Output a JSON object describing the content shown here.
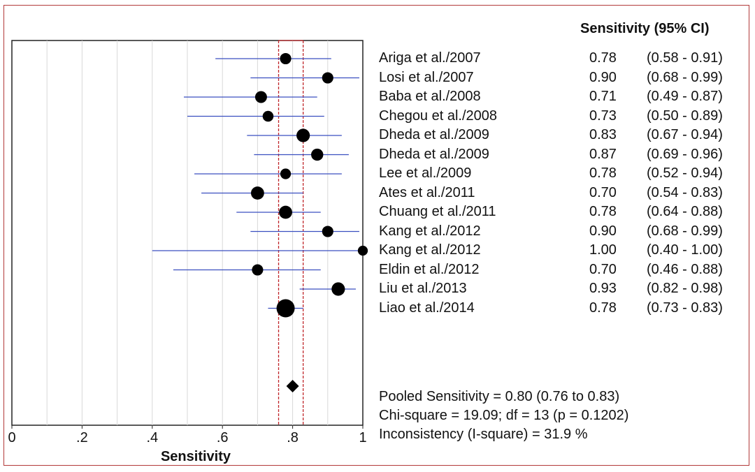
{
  "chart_data": {
    "type": "forest",
    "header": "Sensitivity (95% CI)",
    "xlabel": "Sensitivity",
    "xlim": [
      0,
      1
    ],
    "xticks": [
      "0",
      ".2",
      ".4",
      ".6",
      ".8",
      "1"
    ],
    "pooled_ci": [
      0.76,
      0.83
    ],
    "pooled_estimate": 0.8,
    "studies": [
      {
        "label": "Ariga et al./2007",
        "est": 0.78,
        "lo": 0.58,
        "hi": 0.91,
        "est_text": "0.78",
        "ci_text": "(0.58 - 0.91)"
      },
      {
        "label": "Losi et al./2007",
        "est": 0.9,
        "lo": 0.68,
        "hi": 0.99,
        "est_text": "0.90",
        "ci_text": "(0.68 - 0.99)"
      },
      {
        "label": "Baba et al./2008",
        "est": 0.71,
        "lo": 0.49,
        "hi": 0.87,
        "est_text": "0.71",
        "ci_text": "(0.49 - 0.87)"
      },
      {
        "label": "Chegou et al./2008",
        "est": 0.73,
        "lo": 0.5,
        "hi": 0.89,
        "est_text": "0.73",
        "ci_text": "(0.50 - 0.89)"
      },
      {
        "label": "Dheda et al./2009",
        "est": 0.83,
        "lo": 0.67,
        "hi": 0.94,
        "est_text": "0.83",
        "ci_text": "(0.67 - 0.94)"
      },
      {
        "label": "Dheda et al./2009",
        "est": 0.87,
        "lo": 0.69,
        "hi": 0.96,
        "est_text": "0.87",
        "ci_text": "(0.69 - 0.96)"
      },
      {
        "label": "Lee et al./2009",
        "est": 0.78,
        "lo": 0.52,
        "hi": 0.94,
        "est_text": "0.78",
        "ci_text": "(0.52 - 0.94)"
      },
      {
        "label": "Ates et al./2011",
        "est": 0.7,
        "lo": 0.54,
        "hi": 0.83,
        "est_text": "0.70",
        "ci_text": "(0.54 - 0.83)"
      },
      {
        "label": "Chuang et al./2011",
        "est": 0.78,
        "lo": 0.64,
        "hi": 0.88,
        "est_text": "0.78",
        "ci_text": "(0.64 - 0.88)"
      },
      {
        "label": "Kang et al./2012",
        "est": 0.9,
        "lo": 0.68,
        "hi": 0.99,
        "est_text": "0.90",
        "ci_text": "(0.68 - 0.99)"
      },
      {
        "label": "Kang et al./2012",
        "est": 1.0,
        "lo": 0.4,
        "hi": 1.0,
        "est_text": "1.00",
        "ci_text": "(0.40 - 1.00)"
      },
      {
        "label": "Eldin et al./2012",
        "est": 0.7,
        "lo": 0.46,
        "hi": 0.88,
        "est_text": "0.70",
        "ci_text": "(0.46 - 0.88)"
      },
      {
        "label": "Liu et al./2013",
        "est": 0.93,
        "lo": 0.82,
        "hi": 0.98,
        "est_text": "0.93",
        "ci_text": "(0.82 - 0.98)"
      },
      {
        "label": "Liao et al./2014",
        "est": 0.78,
        "lo": 0.73,
        "hi": 0.83,
        "est_text": "0.78",
        "ci_text": "(0.73 - 0.83)"
      }
    ],
    "marker_weights": [
      0.45,
      0.45,
      0.5,
      0.42,
      0.62,
      0.52,
      0.4,
      0.6,
      0.6,
      0.45,
      0.35,
      0.45,
      0.62,
      1.0
    ],
    "summary": [
      "Pooled Sensitivity = 0.80 (0.76 to 0.83)",
      "Chi-square = 19.09; df =  13 (p = 0.1202)",
      "Inconsistency (I-square) = 31.9 %"
    ],
    "colors": {
      "ci_line": "#3a4fc0",
      "marker": "#000000",
      "pooled_band": "#c0262b",
      "gridline": "#d8d8d8",
      "frame": "#b23a3a"
    }
  }
}
